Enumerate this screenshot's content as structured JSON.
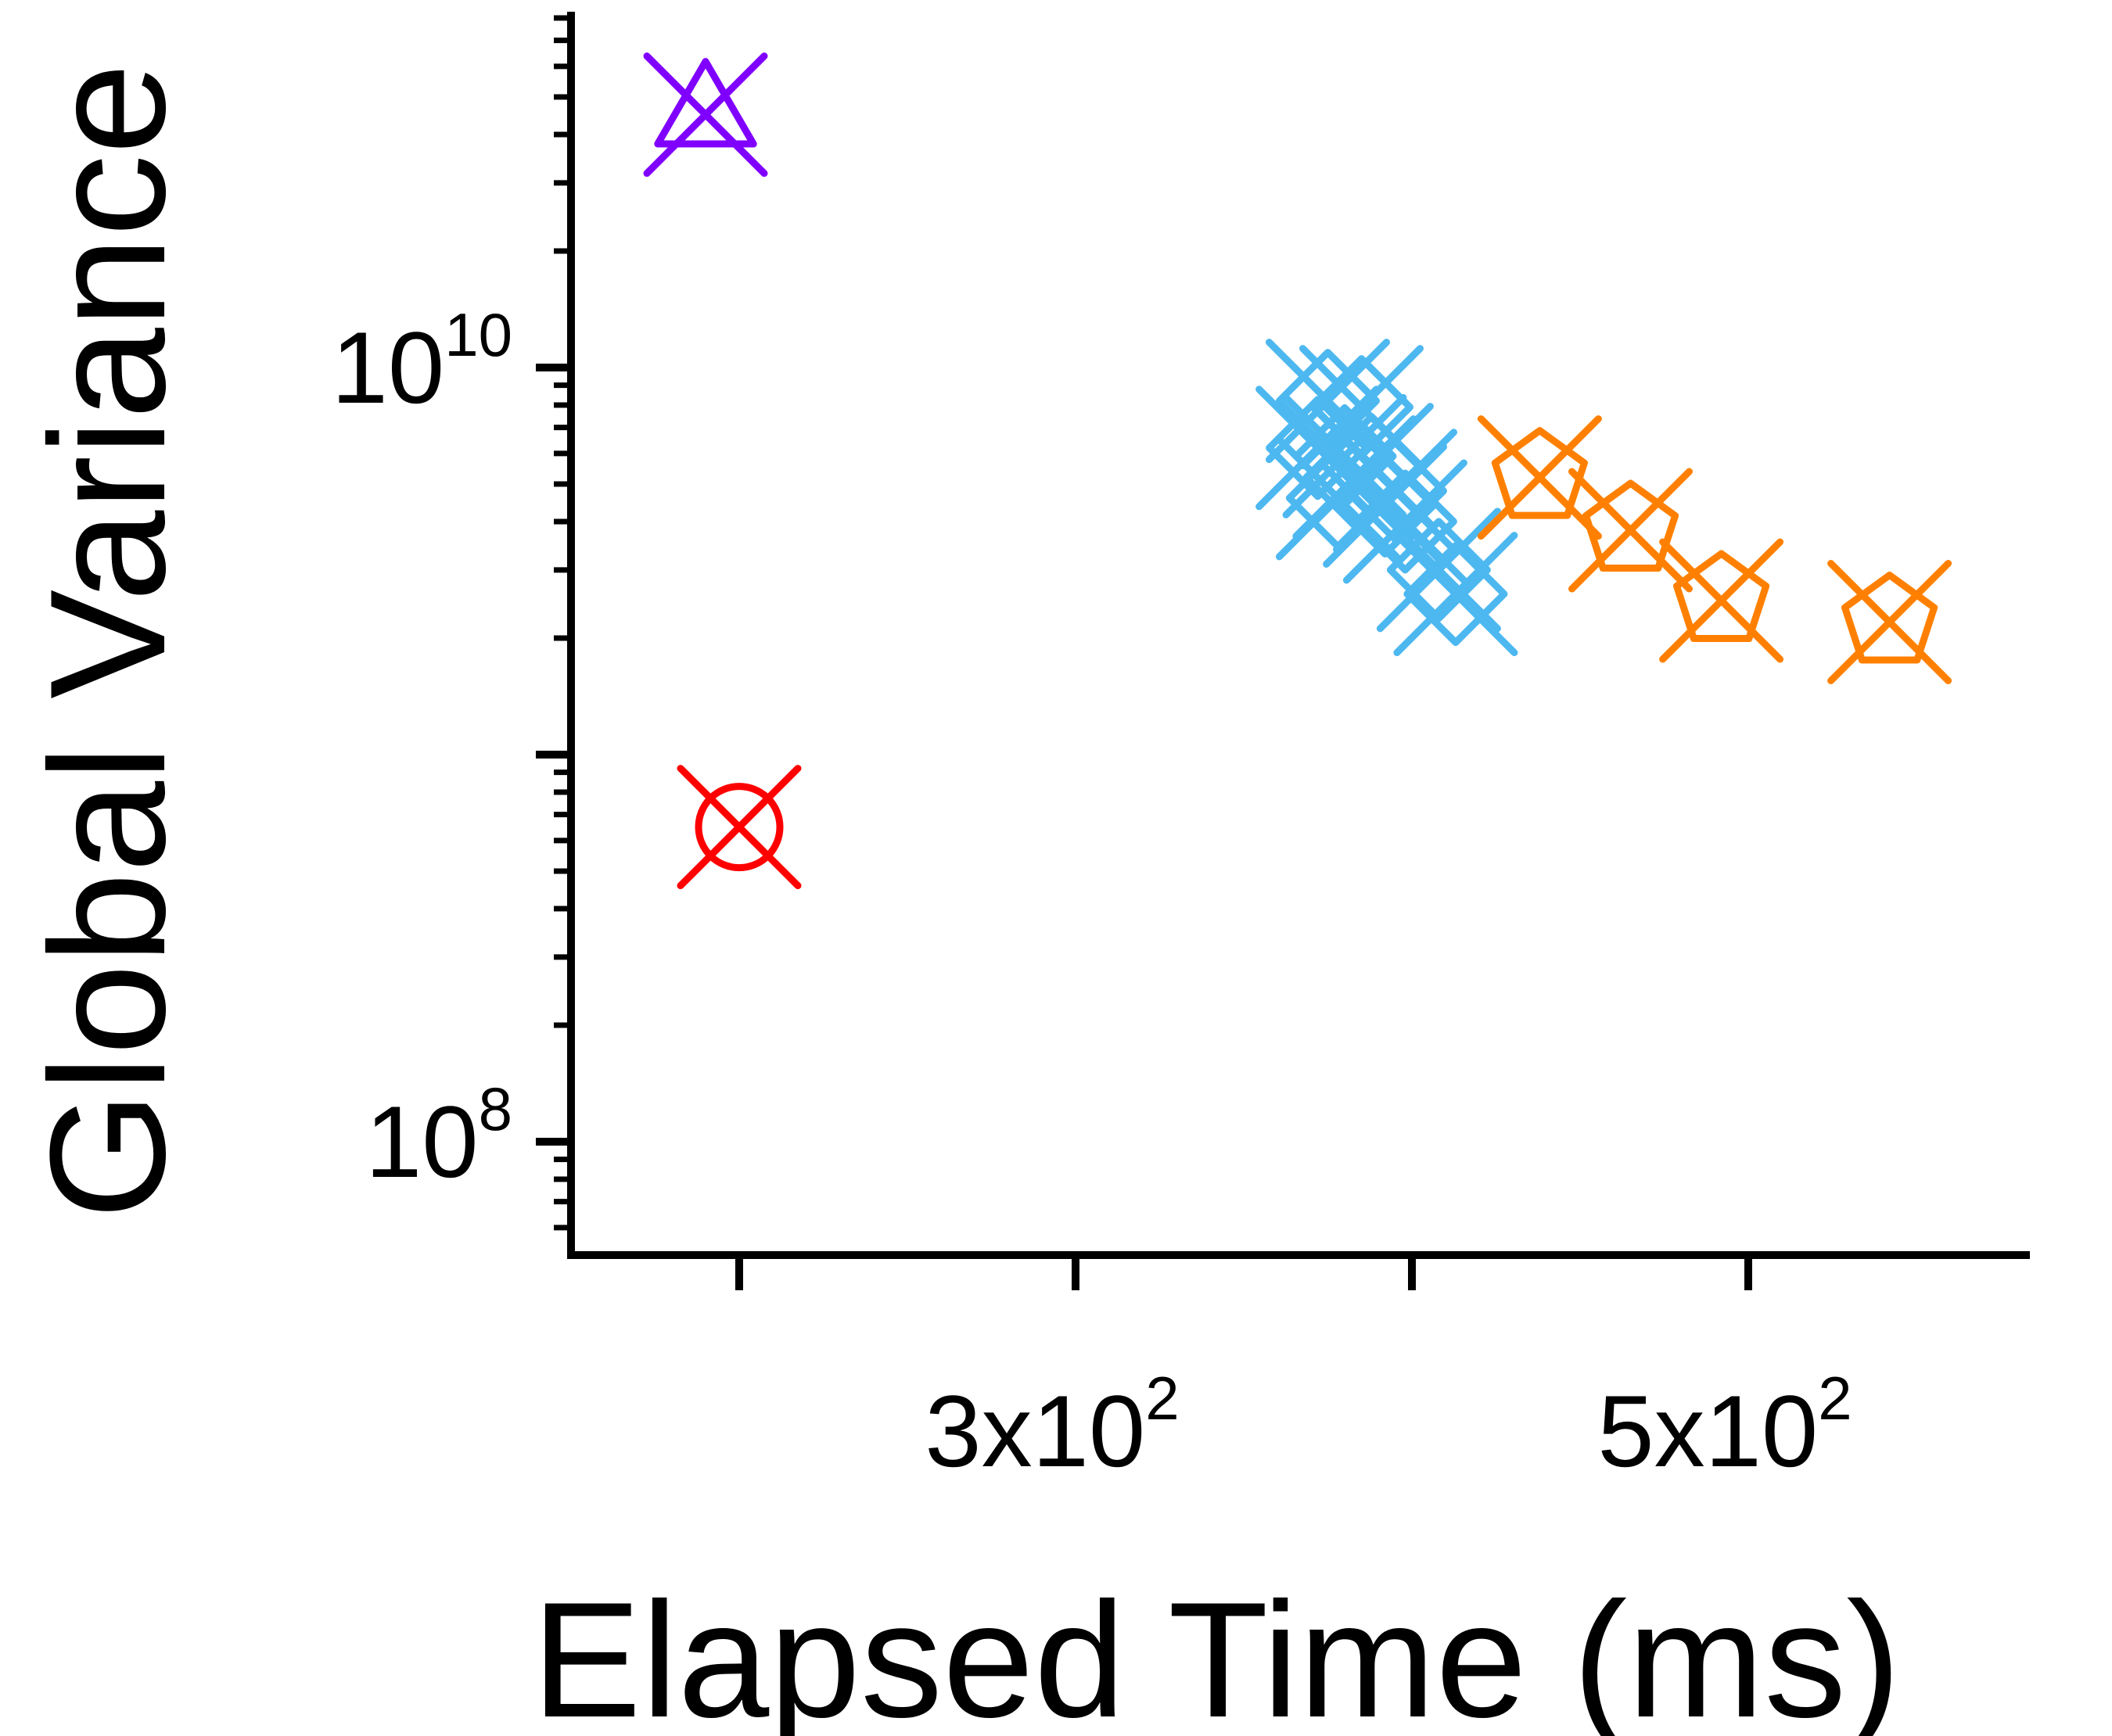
{
  "chart_data": {
    "type": "scatter",
    "title": "",
    "xlabel": "Elapsed Time (ms)",
    "ylabel": "Global Variance",
    "x_scale": "linear",
    "y_scale": "log",
    "xlim": [
      150,
      600
    ],
    "ylim": [
      50000000.0,
      200000000000.0
    ],
    "x_ticks": [
      {
        "value": 200,
        "label": ""
      },
      {
        "value": 300,
        "base": "3x10",
        "exp": "2"
      },
      {
        "value": 400,
        "label": ""
      },
      {
        "value": 500,
        "base": "5x10",
        "exp": "2"
      }
    ],
    "y_ticks": [
      {
        "value": 100000000.0,
        "base": "10",
        "exp": "8"
      },
      {
        "value": 10000000000.0,
        "base": "10",
        "exp": "10"
      }
    ],
    "grid": false,
    "legend": "none",
    "series": [
      {
        "color": "#8000ff",
        "marker": "triangle-x",
        "points": [
          [
            190,
            45000000000.0
          ]
        ]
      },
      {
        "color": "#ff0000",
        "marker": "circle-x",
        "points": [
          [
            200,
            650000000.0
          ]
        ]
      },
      {
        "color": "#4db8f0",
        "marker": "diamond-x",
        "points": [
          [
            375,
            8200000000.0
          ],
          [
            385,
            7900000000.0
          ],
          [
            372,
            6200000000.0
          ],
          [
            380,
            5900000000.0
          ],
          [
            388,
            5600000000.0
          ],
          [
            383,
            5200000000.0
          ],
          [
            395,
            4800000000.0
          ],
          [
            378,
            4600000000.0
          ],
          [
            392,
            4400000000.0
          ],
          [
            398,
            4000000000.0
          ],
          [
            408,
            3000000000.0
          ],
          [
            413,
            2600000000.0
          ]
        ]
      },
      {
        "color": "#ff8000",
        "marker": "pentagon-x",
        "points": [
          [
            438,
            5200000000.0
          ],
          [
            465,
            3800000000.0
          ],
          [
            492,
            2500000000.0
          ],
          [
            542,
            2200000000.0
          ]
        ]
      }
    ]
  }
}
